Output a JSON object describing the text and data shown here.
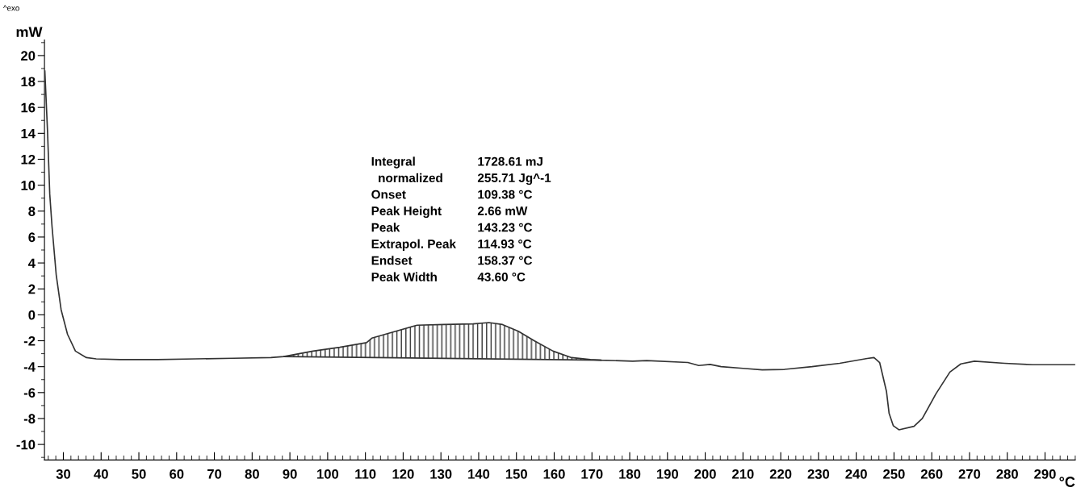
{
  "chart_data": {
    "type": "line",
    "xlabel": "°C",
    "ylabel": "mW",
    "xlim": [
      25,
      298
    ],
    "ylim": [
      -11.2,
      21.2
    ],
    "xticks": [
      30,
      40,
      50,
      60,
      70,
      80,
      90,
      100,
      110,
      120,
      130,
      140,
      150,
      160,
      170,
      180,
      190,
      200,
      210,
      220,
      230,
      240,
      250,
      260,
      270,
      280,
      290
    ],
    "yticks": [
      -10,
      -8,
      -6,
      -4,
      -2,
      0,
      2,
      4,
      6,
      8,
      10,
      12,
      14,
      16,
      18,
      20
    ],
    "grid": false,
    "marker": "none",
    "line_style": "solid",
    "series": [
      {
        "color": "#333333",
        "x": [
          25.1,
          25.8,
          26.4,
          27.0,
          28.1,
          29.4,
          31.1,
          33.2,
          36.1,
          38.7,
          45,
          55,
          65,
          75,
          85,
          88.4,
          96.1,
          103.2,
          110.3,
          111.7,
          117.3,
          123.7,
          130.7,
          138.5,
          142.7,
          146.3,
          150.5,
          154.7,
          159.7,
          164.6,
          169.6,
          172.4,
          180.8,
          184.5,
          195.4,
          198.3,
          201.3,
          204.2,
          210.0,
          215.1,
          221.0,
          228.3,
          235.6,
          242.9,
          244.7,
          246.2,
          248.0,
          248.7,
          249.8,
          251.3,
          255.3,
          257.5,
          261.1,
          264.8,
          267.7,
          271.3,
          279.3,
          286.7,
          298
        ],
        "values": [
          18.8,
          14.2,
          9.3,
          6.8,
          3.1,
          0.4,
          -1.5,
          -2.8,
          -3.3,
          -3.4,
          -3.45,
          -3.45,
          -3.4,
          -3.35,
          -3.3,
          -3.22,
          -2.8,
          -2.5,
          -2.15,
          -1.8,
          -1.33,
          -0.8,
          -0.75,
          -0.7,
          -0.6,
          -0.75,
          -1.27,
          -2.0,
          -2.8,
          -3.3,
          -3.45,
          -3.5,
          -3.58,
          -3.53,
          -3.68,
          -3.91,
          -3.83,
          -4.0,
          -4.13,
          -4.25,
          -4.21,
          -4.0,
          -3.74,
          -3.37,
          -3.3,
          -3.68,
          -5.9,
          -7.6,
          -8.55,
          -8.87,
          -8.6,
          -8.0,
          -6.1,
          -4.42,
          -3.79,
          -3.58,
          -3.74,
          -3.85,
          -3.85
        ],
        "lower": [
          null,
          null,
          null,
          null,
          null,
          null,
          null,
          null,
          null,
          null,
          null,
          null,
          null,
          null,
          null,
          -3.22,
          -3.25,
          -3.27,
          -3.3,
          -3.3,
          -3.32,
          -3.34,
          -3.36,
          -3.38,
          -3.4,
          -3.41,
          -3.43,
          -3.44,
          -3.46,
          -3.48,
          -3.49,
          -3.5,
          null,
          null,
          null,
          null,
          null,
          null,
          null,
          null,
          null,
          null,
          null,
          null,
          null,
          null,
          null,
          null,
          null,
          null,
          null,
          null,
          null,
          null,
          null,
          null,
          null,
          null,
          null
        ],
        "upper": [
          null,
          null,
          null,
          null,
          null,
          null,
          null,
          null,
          null,
          null,
          null,
          null,
          null,
          null,
          null,
          -3.22,
          -2.8,
          -2.5,
          -2.15,
          -1.8,
          -1.33,
          -0.8,
          -0.75,
          -0.7,
          -0.6,
          -0.75,
          -1.27,
          -2.0,
          -2.8,
          -3.3,
          -3.45,
          -3.5,
          null,
          null,
          null,
          null,
          null,
          null,
          null,
          null,
          null,
          null,
          null,
          null,
          null,
          null,
          null,
          null,
          null,
          null,
          null,
          null,
          null,
          null,
          null,
          null,
          null,
          null,
          null
        ]
      },
      {
        "color": "#333333",
        "x": [
          88.4,
          130.7,
          172.4
        ],
        "values": [
          -3.22,
          -3.36,
          -3.5
        ]
      }
    ],
    "annotations": [
      "^exo",
      "Integral\t1728.61 mJ",
      "  normalized\t255.71 Jg^-1",
      "Onset\t109.38 °C",
      "Peak Height\t2.66 mW",
      "Peak\t143.23 °C",
      "Extrapol. Peak\t114.93 °C",
      "Endset\t158.37 °C",
      "Peak Width\t43.60 °C"
    ]
  }
}
